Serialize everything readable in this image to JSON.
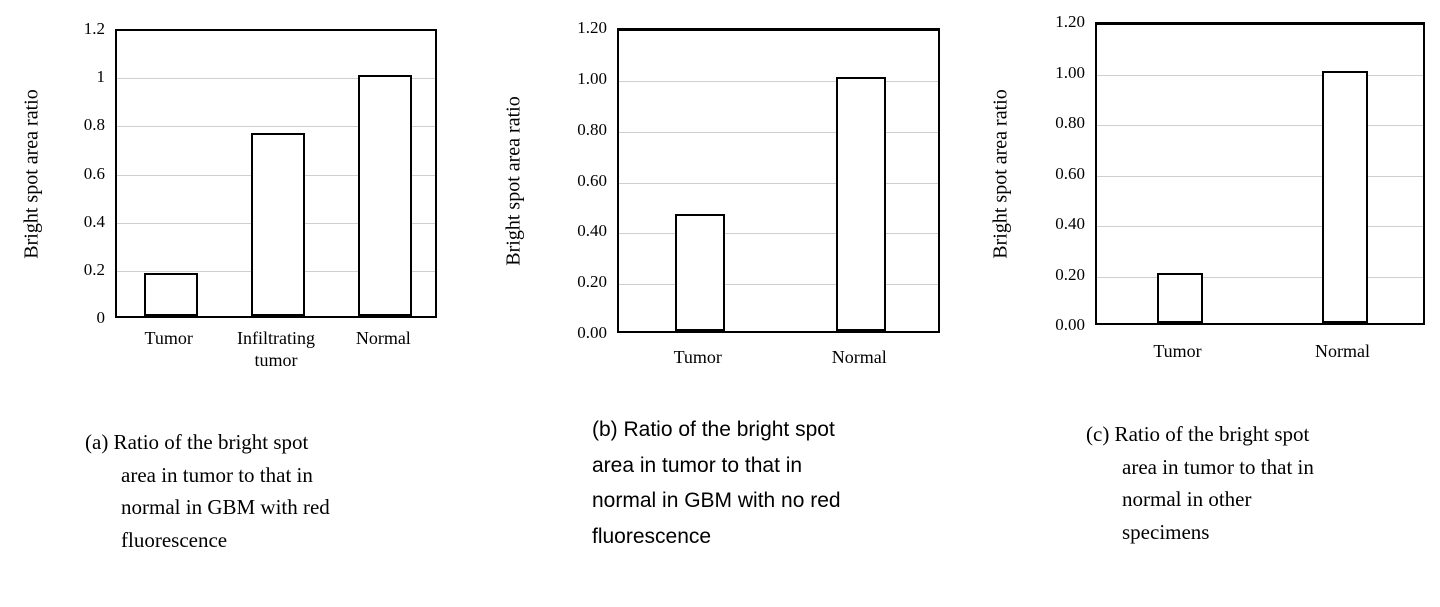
{
  "page": {
    "background": "#ffffff"
  },
  "chart_data": [
    {
      "id": "a",
      "type": "bar",
      "ylabel": "Bright spot area ratio",
      "categories": [
        "Tumor",
        "Infiltrating tumor",
        "Normal"
      ],
      "values": [
        0.18,
        0.76,
        1.0
      ],
      "ylim": [
        0,
        1.2
      ],
      "ytick_values": [
        0,
        0.2,
        0.4,
        0.6,
        0.8,
        1.0,
        1.2
      ],
      "ytick_labels": [
        "0",
        "0.2",
        "0.4",
        "0.6",
        "0.8",
        "1",
        "1.2"
      ],
      "grid": true,
      "bar_fill": "#ffffff",
      "bar_border": "#000000",
      "gridline_color": "#cfcfcf",
      "caption": "(a) Ratio of the bright spot area in tumor to that in normal in GBM with red fluorescence",
      "caption_lines": [
        "(a) Ratio of the bright spot",
        "area in tumor to that in",
        "normal in GBM with red",
        "fluorescence"
      ]
    },
    {
      "id": "b",
      "type": "bar",
      "ylabel": "Bright spot area ratio",
      "categories": [
        "Tumor",
        "Normal"
      ],
      "values": [
        0.46,
        1.0
      ],
      "ylim": [
        0,
        1.2
      ],
      "ytick_values": [
        0,
        0.2,
        0.4,
        0.6,
        0.8,
        1.0,
        1.2
      ],
      "ytick_labels": [
        "0.00",
        "0.20",
        "0.40",
        "0.60",
        "0.80",
        "1.00",
        "1.20"
      ],
      "grid": true,
      "bar_fill": "#ffffff",
      "bar_border": "#000000",
      "gridline_color": "#cfcfcf",
      "caption": "(b) Ratio of the bright spot area in tumor to that in normal in GBM with no red fluorescence",
      "caption_lines": [
        "(b) Ratio of the bright spot",
        "area in tumor to that in",
        "normal in GBM with no red",
        "fluorescence"
      ]
    },
    {
      "id": "c",
      "type": "bar",
      "ylabel": "Bright spot area ratio",
      "categories": [
        "Tumor",
        "Normal"
      ],
      "values": [
        0.2,
        1.0
      ],
      "ylim": [
        0,
        1.2
      ],
      "ytick_values": [
        0,
        0.2,
        0.4,
        0.6,
        0.8,
        1.0,
        1.2
      ],
      "ytick_labels": [
        "0.00",
        "0.20",
        "0.40",
        "0.60",
        "0.80",
        "1.00",
        "1.20"
      ],
      "grid": true,
      "bar_fill": "#ffffff",
      "bar_border": "#000000",
      "gridline_color": "#cfcfcf",
      "caption": "(c) Ratio of the bright spot area in tumor to that in normal in other specimens",
      "caption_lines": [
        "(c) Ratio of the bright spot",
        "area in tumor to that in",
        "normal in other",
        "specimens"
      ]
    }
  ]
}
